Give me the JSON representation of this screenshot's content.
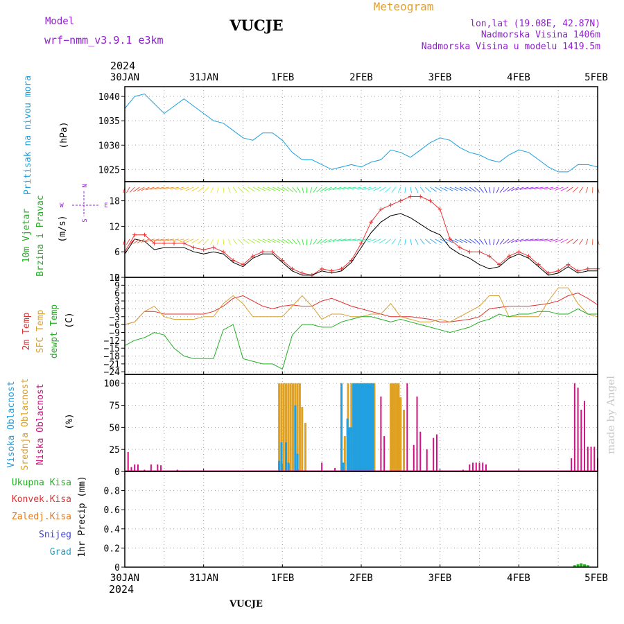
{
  "header": {
    "model_label": "Model",
    "model_name": "wrf−nmm_v3.9.1  e3km",
    "station": "VUCJE",
    "product": "Meteogram",
    "coords": "lon,lat (19.08E, 42.87N)",
    "elevation": "Nadmorska Visina 1406m",
    "model_elevation": "Nadmorska Visina u modelu 1419.5m",
    "year": "2024",
    "footer_station": "VUCJE",
    "credit": "made by Angel"
  },
  "colors": {
    "pressure": "#1aa0e0",
    "temp2m": "#e03030",
    "sfc": "#d8a030",
    "dew": "#20b020",
    "high_cloud": "#20a0e0",
    "mid_cloud": "#e0a020",
    "low_cloud": "#d01080",
    "precip": "#20b020",
    "wind_gust": "#ee3030",
    "wind_speed": "#000000",
    "wind_arrows": "#9020d0"
  },
  "chart_data": [
    {
      "type": "line",
      "panel": "pressure",
      "ylabels": [
        "Pritisak na nivou mora",
        "(hPa)"
      ],
      "x_ticks": [
        "30JAN",
        "31JAN",
        "1FEB",
        "2FEB",
        "3FEB",
        "4FEB",
        "5FEB"
      ],
      "ylim": [
        1022.5,
        1042
      ],
      "yticks": [
        1025,
        1030,
        1035,
        1040
      ],
      "grid": true,
      "series": [
        {
          "key": "pressure",
          "x": [
            0,
            3,
            6,
            9,
            12,
            15,
            18,
            21,
            24,
            27,
            30,
            33,
            36,
            39,
            42,
            45,
            48,
            51,
            54,
            57,
            60,
            63,
            66,
            69,
            72,
            75,
            78,
            81,
            84,
            87,
            90,
            93,
            96,
            99,
            102,
            105,
            108,
            111,
            114,
            117,
            120,
            123,
            126,
            129,
            132,
            135,
            138,
            141,
            144
          ],
          "values": [
            1037.5,
            1040,
            1040.5,
            1038.5,
            1036.5,
            1038,
            1039.5,
            1038,
            1036.5,
            1035,
            1034.5,
            1033,
            1031.5,
            1031,
            1032.5,
            1032.5,
            1031,
            1028.5,
            1027,
            1027,
            1026,
            1025,
            1025.5,
            1026,
            1025.5,
            1026.5,
            1027,
            1029,
            1028.5,
            1027.5,
            1029,
            1030.5,
            1031.5,
            1031,
            1029.5,
            1028.5,
            1028,
            1027,
            1026.5,
            1028,
            1029,
            1028.5,
            1027,
            1025.5,
            1024.5,
            1024.5,
            1026,
            1026,
            1025.5
          ]
        }
      ]
    },
    {
      "type": "line",
      "panel": "wind",
      "ylabels": [
        "10m Vjetar",
        "Brzina i Pravac",
        "(m/s)"
      ],
      "compass": [
        "N",
        "S",
        "W",
        "E"
      ],
      "x_ticks": [
        "30JAN",
        "31JAN",
        "1FEB",
        "2FEB",
        "3FEB",
        "4FEB",
        "5FEB"
      ],
      "ylim": [
        0,
        22.5
      ],
      "yticks": [
        0,
        6,
        12,
        18
      ],
      "grid": true,
      "series": [
        {
          "key": "gust",
          "x": [
            0,
            3,
            6,
            9,
            12,
            15,
            18,
            21,
            24,
            27,
            30,
            33,
            36,
            39,
            42,
            45,
            48,
            51,
            54,
            57,
            60,
            63,
            66,
            69,
            72,
            75,
            78,
            81,
            84,
            87,
            90,
            93,
            96,
            99,
            102,
            105,
            108,
            111,
            114,
            117,
            120,
            123,
            126,
            129,
            132,
            135,
            138,
            141,
            144
          ],
          "values": [
            6,
            10,
            10,
            8,
            8,
            8,
            8,
            7,
            6.5,
            7,
            6,
            4,
            3,
            5,
            6,
            6,
            4,
            2,
            1,
            0.5,
            2,
            1.5,
            2,
            4,
            8,
            13,
            16,
            17,
            18,
            19,
            19,
            18,
            16,
            9,
            7,
            6,
            6,
            5,
            3,
            5,
            6,
            5,
            3,
            1,
            1.5,
            3,
            1.5,
            2,
            2
          ]
        },
        {
          "key": "speed",
          "x": [
            0,
            3,
            6,
            9,
            12,
            15,
            18,
            21,
            24,
            27,
            30,
            33,
            36,
            39,
            42,
            45,
            48,
            51,
            54,
            57,
            60,
            63,
            66,
            69,
            72,
            75,
            78,
            81,
            84,
            87,
            90,
            93,
            96,
            99,
            102,
            105,
            108,
            111,
            114,
            117,
            120,
            123,
            126,
            129,
            132,
            135,
            138,
            141,
            144
          ],
          "values": [
            5.5,
            9,
            8.5,
            6.5,
            7,
            7,
            7,
            6,
            5.5,
            6,
            5.5,
            3.5,
            2.5,
            4.5,
            5.5,
            5.5,
            3.5,
            1.5,
            0.5,
            0.5,
            1.5,
            1,
            1.5,
            3.5,
            7,
            10.5,
            13,
            14.5,
            15,
            14,
            12.5,
            11,
            10,
            7,
            5.5,
            4.5,
            3,
            2,
            2.5,
            4.5,
            5.5,
            4.5,
            2.5,
            0.5,
            1,
            2.5,
            1,
            1.5,
            1.5
          ]
        }
      ]
    },
    {
      "type": "line",
      "panel": "temperature",
      "ylabels": [
        "2m Temp",
        "SFC Temp",
        "dewpt Temp",
        "(C)"
      ],
      "x_ticks": [
        "30JAN",
        "31JAN",
        "1FEB",
        "2FEB",
        "3FEB",
        "4FEB",
        "5FEB"
      ],
      "ylim": [
        -25,
        12
      ],
      "yticks": [
        12,
        9,
        6,
        3,
        0,
        -3,
        -6,
        -9,
        -12,
        -15,
        -18,
        -21,
        -24
      ],
      "ytick_labels": [
        "12",
        "9",
        "6",
        "3",
        "0",
        "−3",
        "−6",
        "−9",
        "−12",
        "−15",
        "−18",
        "−21",
        "−24"
      ],
      "grid": true,
      "series": [
        {
          "key": "temp2m",
          "x": [
            0,
            3,
            6,
            9,
            12,
            15,
            18,
            21,
            24,
            27,
            30,
            33,
            36,
            39,
            42,
            45,
            48,
            51,
            54,
            57,
            60,
            63,
            66,
            69,
            72,
            75,
            78,
            81,
            84,
            87,
            90,
            93,
            96,
            99,
            102,
            105,
            108,
            111,
            114,
            117,
            120,
            123,
            126,
            129,
            132,
            135,
            138,
            141,
            144
          ],
          "values": [
            -6,
            -5,
            -1,
            -1,
            -2,
            -2,
            -2,
            -2,
            -2,
            -1,
            1,
            4,
            5,
            3,
            1,
            0,
            1,
            1.5,
            1,
            1,
            3,
            4,
            2.5,
            1,
            0,
            -1,
            -2,
            -3,
            -3,
            -3,
            -3.5,
            -4,
            -5,
            -5,
            -4.5,
            -4,
            -3,
            0,
            0.5,
            1,
            1,
            1,
            1.5,
            2,
            3,
            5,
            6,
            4,
            1.5
          ]
        },
        {
          "key": "sfc",
          "x": [
            0,
            3,
            6,
            9,
            12,
            15,
            18,
            21,
            24,
            27,
            30,
            33,
            36,
            39,
            42,
            45,
            48,
            51,
            54,
            57,
            60,
            63,
            66,
            69,
            72,
            75,
            78,
            81,
            84,
            87,
            90,
            93,
            96,
            99,
            102,
            105,
            108,
            111,
            114,
            117,
            120,
            123,
            126,
            129,
            132,
            135,
            138,
            141,
            144
          ],
          "values": [
            -6,
            -5,
            -1,
            1,
            -3,
            -4,
            -4,
            -4,
            -3,
            -3,
            2,
            5,
            2,
            -3,
            -3,
            -3,
            -3,
            1,
            5,
            1,
            -4,
            -2,
            -2,
            -3,
            -3,
            -2,
            -2,
            2,
            -3,
            -4,
            -5,
            -5,
            -4,
            -5,
            -3,
            -1,
            1,
            5,
            5,
            -3,
            -3,
            -3,
            -3,
            3,
            8,
            8,
            2,
            -2,
            -3
          ]
        },
        {
          "key": "dew",
          "x": [
            0,
            3,
            6,
            9,
            12,
            15,
            18,
            21,
            24,
            27,
            30,
            33,
            36,
            39,
            42,
            45,
            48,
            51,
            54,
            57,
            60,
            63,
            66,
            69,
            72,
            75,
            78,
            81,
            84,
            87,
            90,
            93,
            96,
            99,
            102,
            105,
            108,
            111,
            114,
            117,
            120,
            123,
            126,
            129,
            132,
            135,
            138,
            141,
            144
          ],
          "values": [
            -14,
            -12,
            -11,
            -9,
            -10,
            -15,
            -18,
            -19,
            -19,
            -19,
            -8,
            -6,
            -19,
            -20,
            -21,
            -21,
            -23,
            -10,
            -6,
            -6,
            -7,
            -7,
            -5,
            -4,
            -3,
            -3,
            -4,
            -5,
            -4,
            -5,
            -6,
            -7,
            -8,
            -9,
            -8,
            -7,
            -5,
            -4,
            -2,
            -3,
            -2,
            -2,
            -1,
            -1,
            -2,
            -2,
            0,
            -2,
            -2
          ]
        }
      ]
    },
    {
      "type": "bar",
      "panel": "clouds",
      "ylabels": [
        "Visoka Oblacnost",
        "Srednja Oblacnost",
        "Niska Oblacnost",
        "(%)"
      ],
      "x_ticks": [
        "30JAN",
        "31JAN",
        "1FEB",
        "2FEB",
        "3FEB",
        "4FEB",
        "5FEB"
      ],
      "ylim": [
        0,
        110
      ],
      "yticks": [
        0,
        25,
        50,
        75,
        100
      ],
      "grid": true,
      "series": [
        {
          "key": "low",
          "x": [
            1,
            2,
            3,
            4,
            6,
            8,
            10,
            11,
            16,
            48,
            50,
            53,
            60,
            64,
            66,
            68,
            69,
            70,
            72,
            74,
            76,
            78,
            79,
            81,
            83,
            84,
            86,
            88,
            89,
            90,
            92,
            94,
            95,
            103,
            105,
            106,
            107,
            108,
            109,
            110,
            136,
            137,
            138,
            139,
            140,
            141,
            142,
            143,
            144
          ],
          "values": [
            22,
            5,
            8,
            8,
            2,
            8,
            8,
            7,
            2,
            9,
            9,
            2,
            10,
            4,
            7,
            28,
            10,
            6,
            10,
            30,
            50,
            85,
            40,
            70,
            45,
            45,
            100,
            30,
            85,
            45,
            25,
            38,
            42,
            2,
            8,
            10,
            10,
            10,
            10,
            8,
            15,
            100,
            95,
            70,
            80,
            28,
            28,
            28,
            15
          ]
        },
        {
          "key": "mid",
          "x": [
            47,
            47.7,
            48.4,
            49.1,
            49.8,
            50.5,
            51.2,
            51.9,
            52.6,
            53.3,
            54,
            55,
            66,
            67,
            68,
            69,
            70,
            70.6,
            71.2,
            71.8,
            72.4,
            73,
            73.6,
            74.2,
            74.8,
            75.4,
            76,
            81,
            81.6,
            82.2,
            82.8,
            83.4,
            84,
            85
          ],
          "values": [
            100,
            100,
            100,
            100,
            100,
            100,
            100,
            100,
            100,
            100,
            73,
            55,
            100,
            40,
            100,
            100,
            100,
            100,
            100,
            100,
            100,
            100,
            100,
            100,
            100,
            100,
            100,
            100,
            100,
            100,
            100,
            100,
            84,
            70
          ]
        },
        {
          "key": "high",
          "x": [
            47,
            47.7,
            49.1,
            49.8,
            51.9,
            52.6,
            66,
            66.6,
            67.8,
            68.4,
            69,
            69.6,
            70.2,
            70.8,
            71.4,
            72,
            72.6,
            73.2,
            73.8,
            74.4,
            75,
            75.6
          ],
          "values": [
            12,
            33,
            33,
            10,
            75,
            20,
            100,
            10,
            60,
            50,
            50,
            100,
            100,
            100,
            100,
            100,
            100,
            100,
            100,
            100,
            100,
            100
          ]
        }
      ]
    },
    {
      "type": "bar",
      "panel": "precip",
      "ylabels": [
        "Ukupna Kisa",
        "Konvek.Kisa",
        "Zaledj.Kisa",
        "Snijeg",
        "Grad",
        "1hr Precip (mm)"
      ],
      "x_ticks": [
        "30JAN",
        "31JAN",
        "1FEB",
        "2FEB",
        "3FEB",
        "4FEB",
        "5FEB"
      ],
      "ylim": [
        0,
        1
      ],
      "yticks": [
        0,
        0.2,
        0.4,
        0.6,
        0.8
      ],
      "ytick_labels": [
        "0",
        "0.2",
        "0.4",
        "0.6",
        "0.8"
      ],
      "grid": true,
      "series": [
        {
          "key": "precip",
          "x": [
            137,
            138,
            139,
            140,
            141
          ],
          "values": [
            0.02,
            0.03,
            0.04,
            0.03,
            0.02
          ]
        }
      ]
    }
  ]
}
